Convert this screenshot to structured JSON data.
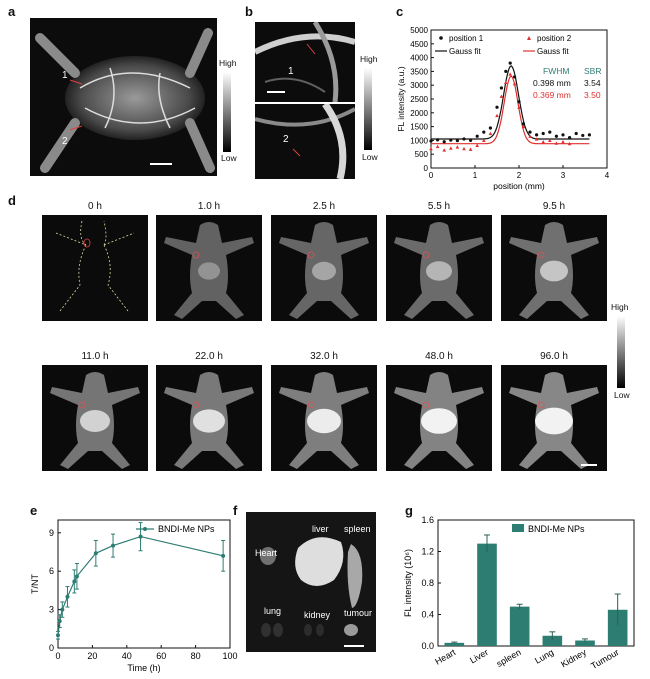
{
  "panels": {
    "a": {
      "label": "a",
      "markers": [
        "1",
        "2"
      ],
      "colorbar_high": "High",
      "colorbar_low": "Low"
    },
    "b": {
      "label": "b",
      "markers": [
        "1",
        "2"
      ],
      "colorbar_high": "High",
      "colorbar_low": "Low"
    },
    "c": {
      "label": "c"
    },
    "d": {
      "label": "d",
      "times": [
        "0 h",
        "1.0 h",
        "2.5 h",
        "5.5 h",
        "9.5 h",
        "11.0 h",
        "22.0 h",
        "32.0 h",
        "48.0 h",
        "96.0 h"
      ],
      "colorbar_high": "High",
      "colorbar_low": "Low"
    },
    "e": {
      "label": "e"
    },
    "f": {
      "label": "f",
      "organs": [
        "Heart",
        "liver",
        "spleen",
        "lung",
        "kidney",
        "tumour"
      ]
    },
    "g": {
      "label": "g"
    }
  },
  "chart_data": [
    {
      "id": "c",
      "type": "scatter",
      "xlabel": "position (mm)",
      "ylabel": "FL intensity (a.u.)",
      "xlim": [
        0,
        4
      ],
      "ylim": [
        0,
        5000
      ],
      "xticks": [
        "0",
        "1",
        "2",
        "3",
        "4"
      ],
      "yticks": [
        "0",
        "500",
        "1000",
        "1500",
        "2000",
        "2500",
        "3000",
        "3500",
        "4000",
        "4500",
        "5000"
      ],
      "legend": [
        "position 1",
        "position 2",
        "Gauss fit",
        "Gauss fit"
      ],
      "annotation_header": [
        "FWHM",
        "SBR"
      ],
      "annotations": [
        {
          "fwhm": "0.398 mm",
          "sbr": "3.54"
        },
        {
          "fwhm": "0.369 mm",
          "sbr": "3.50"
        }
      ],
      "series": [
        {
          "name": "position 1",
          "color": "#111111",
          "x": [
            0.0,
            0.15,
            0.3,
            0.45,
            0.6,
            0.75,
            0.9,
            1.05,
            1.2,
            1.35,
            1.5,
            1.6,
            1.7,
            1.8,
            1.9,
            2.0,
            2.1,
            2.25,
            2.4,
            2.55,
            2.7,
            2.85,
            3.0,
            3.15,
            3.3,
            3.45,
            3.6
          ],
          "y": [
            980,
            1020,
            950,
            1010,
            990,
            1050,
            1000,
            1150,
            1300,
            1450,
            2200,
            2900,
            3500,
            3800,
            3300,
            2400,
            1600,
            1300,
            1200,
            1250,
            1300,
            1150,
            1200,
            1100,
            1250,
            1180,
            1200
          ]
        },
        {
          "name": "position 2",
          "color": "#e03030",
          "x": [
            0.0,
            0.15,
            0.3,
            0.45,
            0.6,
            0.75,
            0.9,
            1.05,
            1.2,
            1.35,
            1.5,
            1.6,
            1.7,
            1.8,
            1.9,
            2.0,
            2.1,
            2.25,
            2.4,
            2.55,
            2.7,
            2.85,
            3.0,
            3.15
          ],
          "y": [
            700,
            780,
            650,
            720,
            760,
            700,
            680,
            820,
            1000,
            1250,
            1900,
            2600,
            3100,
            3400,
            3050,
            2200,
            1500,
            1150,
            1050,
            950,
            1000,
            900,
            950,
            880
          ]
        }
      ],
      "fits": [
        {
          "name": "Gauss fit",
          "color": "#111111",
          "baseline": 1050,
          "amplitude": 2650,
          "center": 1.82,
          "fwhm": 0.398
        },
        {
          "name": "Gauss fit",
          "color": "#e03030",
          "baseline": 880,
          "amplitude": 2450,
          "center": 1.82,
          "fwhm": 0.369
        }
      ]
    },
    {
      "id": "e",
      "type": "line",
      "xlabel": "Time (h)",
      "ylabel": "T/NT",
      "xlim": [
        0,
        100
      ],
      "ylim": [
        0,
        10
      ],
      "xticks": [
        "0",
        "20",
        "40",
        "60",
        "80",
        "100"
      ],
      "yticks": [
        "0",
        "3",
        "6",
        "9"
      ],
      "legend": [
        "BNDI-Me NPs"
      ],
      "series": [
        {
          "name": "BNDI-Me NPs",
          "color": "#2e7d73",
          "x": [
            0,
            1,
            2.5,
            5.5,
            9.5,
            11,
            22,
            32,
            48,
            96
          ],
          "y": [
            1.0,
            2.1,
            3.0,
            4.0,
            5.2,
            5.6,
            7.4,
            8.0,
            8.7,
            7.2
          ],
          "err": [
            0.3,
            0.5,
            0.6,
            0.8,
            0.9,
            1.0,
            1.0,
            0.9,
            1.1,
            1.2
          ]
        }
      ]
    },
    {
      "id": "g",
      "type": "bar",
      "ylabel": "FL intensity (10⁶)",
      "ylim": [
        0,
        1.6
      ],
      "yticks": [
        "0.0",
        "0.4",
        "0.8",
        "1.2",
        "1.6"
      ],
      "legend": [
        "BNDI-Me NPs"
      ],
      "categories": [
        "Heart",
        "Liver",
        "spleen",
        "Lung",
        "Kidney",
        "Tumour"
      ],
      "series": [
        {
          "name": "BNDI-Me NPs",
          "color": "#2e7d73",
          "values": [
            0.04,
            1.3,
            0.5,
            0.13,
            0.07,
            0.46
          ],
          "err": [
            0.01,
            0.11,
            0.03,
            0.05,
            0.02,
            0.2
          ]
        }
      ]
    }
  ]
}
